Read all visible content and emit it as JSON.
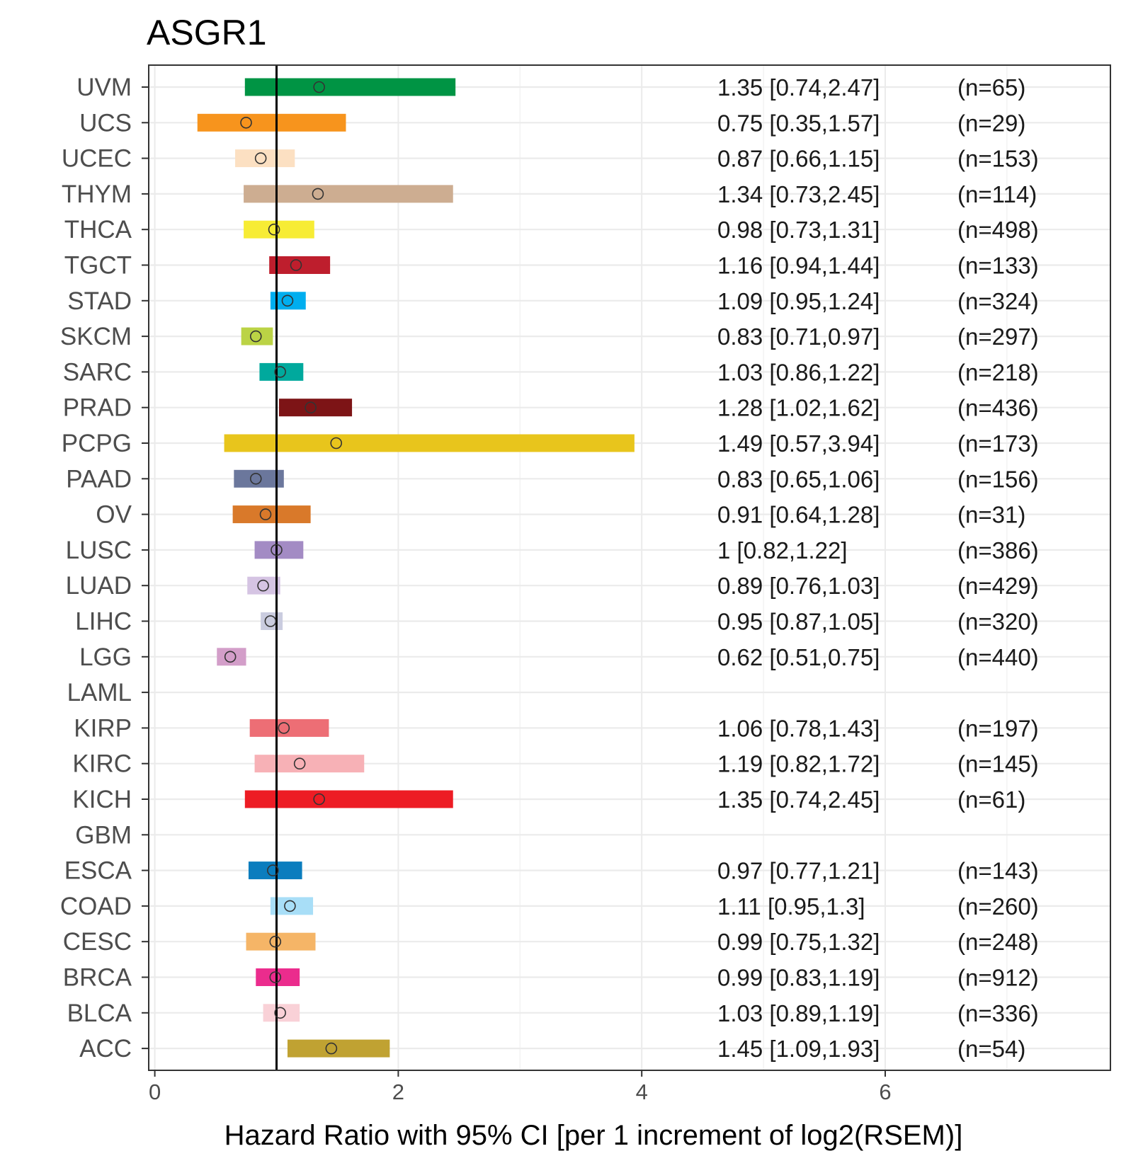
{
  "chart_data": {
    "type": "forest",
    "title": "ASGR1",
    "xlabel": "Hazard Ratio with 95% CI [per 1 increment of log2(RSEM)]",
    "xlim": [
      -0.05,
      7.85
    ],
    "xticks": [
      0,
      2,
      4,
      6
    ],
    "reference_line": 1,
    "grid": true,
    "rows": [
      {
        "label": "UVM",
        "hr": 1.35,
        "low": 0.74,
        "high": 2.47,
        "ann": "1.35 [0.74,2.47]",
        "n": "(n=65)",
        "color": "#009444"
      },
      {
        "label": "UCS",
        "hr": 0.75,
        "low": 0.35,
        "high": 1.57,
        "ann": "0.75 [0.35,1.57]",
        "n": "(n=29)",
        "color": "#F7941D"
      },
      {
        "label": "UCEC",
        "hr": 0.87,
        "low": 0.66,
        "high": 1.15,
        "ann": "0.87 [0.66,1.15]",
        "n": "(n=153)",
        "color": "#FCE0C2"
      },
      {
        "label": "THYM",
        "hr": 1.34,
        "low": 0.73,
        "high": 2.45,
        "ann": "1.34 [0.73,2.45]",
        "n": "(n=114)",
        "color": "#CDAD91"
      },
      {
        "label": "THCA",
        "hr": 0.98,
        "low": 0.73,
        "high": 1.31,
        "ann": "0.98 [0.73,1.31]",
        "n": "(n=498)",
        "color": "#F7EC35"
      },
      {
        "label": "TGCT",
        "hr": 1.16,
        "low": 0.94,
        "high": 1.44,
        "ann": "1.16 [0.94,1.44]",
        "n": "(n=133)",
        "color": "#BE1E2D"
      },
      {
        "label": "STAD",
        "hr": 1.09,
        "low": 0.95,
        "high": 1.24,
        "ann": "1.09 [0.95,1.24]",
        "n": "(n=324)",
        "color": "#00AEEF"
      },
      {
        "label": "SKCM",
        "hr": 0.83,
        "low": 0.71,
        "high": 0.97,
        "ann": "0.83 [0.71,0.97]",
        "n": "(n=297)",
        "color": "#BBD345"
      },
      {
        "label": "SARC",
        "hr": 1.03,
        "low": 0.86,
        "high": 1.22,
        "ann": "1.03 [0.86,1.22]",
        "n": "(n=218)",
        "color": "#00A99D"
      },
      {
        "label": "PRAD",
        "hr": 1.28,
        "low": 1.02,
        "high": 1.62,
        "ann": "1.28 [1.02,1.62]",
        "n": "(n=436)",
        "color": "#7D1416"
      },
      {
        "label": "PCPG",
        "hr": 1.49,
        "low": 0.57,
        "high": 3.94,
        "ann": "1.49 [0.57,3.94]",
        "n": "(n=173)",
        "color": "#E8C51C"
      },
      {
        "label": "PAAD",
        "hr": 0.83,
        "low": 0.65,
        "high": 1.06,
        "ann": "0.83 [0.65,1.06]",
        "n": "(n=156)",
        "color": "#6B779C"
      },
      {
        "label": "OV",
        "hr": 0.91,
        "low": 0.64,
        "high": 1.28,
        "ann": "0.91 [0.64,1.28]",
        "n": "(n=31)",
        "color": "#D9792A"
      },
      {
        "label": "LUSC",
        "hr": 1,
        "low": 0.82,
        "high": 1.22,
        "ann": "1 [0.82,1.22]",
        "n": "(n=386)",
        "color": "#A38BC4"
      },
      {
        "label": "LUAD",
        "hr": 0.89,
        "low": 0.76,
        "high": 1.03,
        "ann": "0.89 [0.76,1.03]",
        "n": "(n=429)",
        "color": "#D5C4E3"
      },
      {
        "label": "LIHC",
        "hr": 0.95,
        "low": 0.87,
        "high": 1.05,
        "ann": "0.95 [0.87,1.05]",
        "n": "(n=320)",
        "color": "#CACCDF"
      },
      {
        "label": "LGG",
        "hr": 0.62,
        "low": 0.51,
        "high": 0.75,
        "ann": "0.62 [0.51,0.75]",
        "n": "(n=440)",
        "color": "#D39EC9"
      },
      {
        "label": "LAML",
        "hr": null,
        "low": null,
        "high": null,
        "ann": "",
        "n": "",
        "color": ""
      },
      {
        "label": "KIRP",
        "hr": 1.06,
        "low": 0.78,
        "high": 1.43,
        "ann": "1.06 [0.78,1.43]",
        "n": "(n=197)",
        "color": "#ED6E75"
      },
      {
        "label": "KIRC",
        "hr": 1.19,
        "low": 0.82,
        "high": 1.72,
        "ann": "1.19 [0.82,1.72]",
        "n": "(n=145)",
        "color": "#F7B1B6"
      },
      {
        "label": "KICH",
        "hr": 1.35,
        "low": 0.74,
        "high": 2.45,
        "ann": "1.35 [0.74,2.45]",
        "n": "(n=61)",
        "color": "#ED1C24"
      },
      {
        "label": "GBM",
        "hr": null,
        "low": null,
        "high": null,
        "ann": "",
        "n": "",
        "color": ""
      },
      {
        "label": "ESCA",
        "hr": 0.97,
        "low": 0.77,
        "high": 1.21,
        "ann": "0.97 [0.77,1.21]",
        "n": "(n=143)",
        "color": "#0B7DBE"
      },
      {
        "label": "COAD",
        "hr": 1.11,
        "low": 0.95,
        "high": 1.3,
        "ann": "1.11 [0.95,1.3]",
        "n": "(n=260)",
        "color": "#A8DEF7"
      },
      {
        "label": "CESC",
        "hr": 0.99,
        "low": 0.75,
        "high": 1.32,
        "ann": "0.99 [0.75,1.32]",
        "n": "(n=248)",
        "color": "#F5B567"
      },
      {
        "label": "BRCA",
        "hr": 0.99,
        "low": 0.83,
        "high": 1.19,
        "ann": "0.99 [0.83,1.19]",
        "n": "(n=912)",
        "color": "#EB2C8D"
      },
      {
        "label": "BLCA",
        "hr": 1.03,
        "low": 0.89,
        "high": 1.19,
        "ann": "1.03 [0.89,1.19]",
        "n": "(n=336)",
        "color": "#F9D1D7"
      },
      {
        "label": "ACC",
        "hr": 1.45,
        "low": 1.09,
        "high": 1.93,
        "ann": "1.45 [1.09,1.93]",
        "n": "(n=54)",
        "color": "#C0A232"
      }
    ]
  }
}
